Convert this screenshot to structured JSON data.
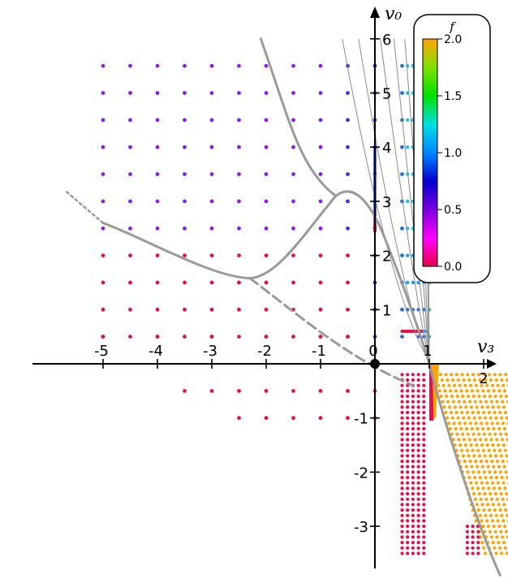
{
  "chart_data": {
    "type": "scatter",
    "xlabel": "v₃",
    "ylabel": "v₀",
    "xlim": [
      -5.3,
      2.3
    ],
    "ylim": [
      -3.7,
      6.2
    ],
    "x_ticks": [
      -5,
      -4,
      -3,
      -2,
      -1,
      0,
      1,
      2
    ],
    "x_tick_labels": [
      "-5",
      "-4",
      "-3",
      "-2",
      "-1",
      "0",
      "1",
      "2"
    ],
    "y_ticks": [
      -3,
      -2,
      -1,
      1,
      2,
      3,
      4,
      5,
      6
    ],
    "y_tick_labels": [
      "-3",
      "-2",
      "-1",
      "1",
      "2",
      "3",
      "4",
      "5",
      "6"
    ],
    "grid": false,
    "colorbar": {
      "title": "f",
      "range": [
        0.0,
        2.0
      ],
      "ticks": [
        0.0,
        0.5,
        1.0,
        1.5,
        2.0
      ],
      "tick_labels": [
        "0.0",
        "0.5",
        "1.0",
        "1.5",
        "2.0"
      ],
      "colormap": [
        "#e8004a",
        "#ff00ff",
        "#7a00e0",
        "#0000d0",
        "#0088ff",
        "#00e0e0",
        "#00e000",
        "#80e000",
        "#ffa500"
      ],
      "position": "top-right"
    },
    "marked_point": [
      0,
      0
    ],
    "colors": {
      "curve": "#9a9a9a",
      "thin_curve": "#8a8a8a",
      "axis": "#000000"
    }
  }
}
